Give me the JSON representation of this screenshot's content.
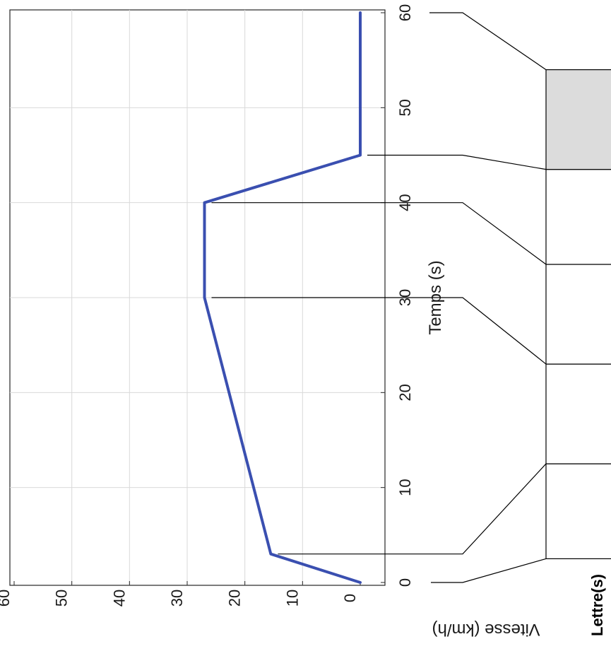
{
  "chart_data": {
    "type": "line",
    "title": "",
    "xlabel": "Temps (s)",
    "ylabel": "Vitesse (km/h)",
    "xlim": [
      0,
      60
    ],
    "ylim": [
      0,
      60
    ],
    "x_ticks": [
      "0",
      "10",
      "20",
      "30",
      "40",
      "50",
      "60"
    ],
    "y_ticks": [
      "0",
      "10",
      "20",
      "30",
      "40",
      "50",
      "60"
    ],
    "grid": true,
    "series": [
      {
        "x": [
          0,
          3,
          30,
          40,
          45,
          60
        ],
        "y": [
          0,
          15.5,
          27,
          27,
          0,
          0
        ],
        "color": "#3a4fb0"
      }
    ]
  },
  "table": {
    "header_label": "Lettre(s)",
    "box_boundaries": [
      2.5,
      12.5,
      23,
      33.5,
      43.5,
      54
    ],
    "shaded_box_index": 4,
    "shade_color": "#dcdcdc",
    "pointer_times": [
      0,
      3,
      30,
      40,
      45,
      60
    ]
  }
}
